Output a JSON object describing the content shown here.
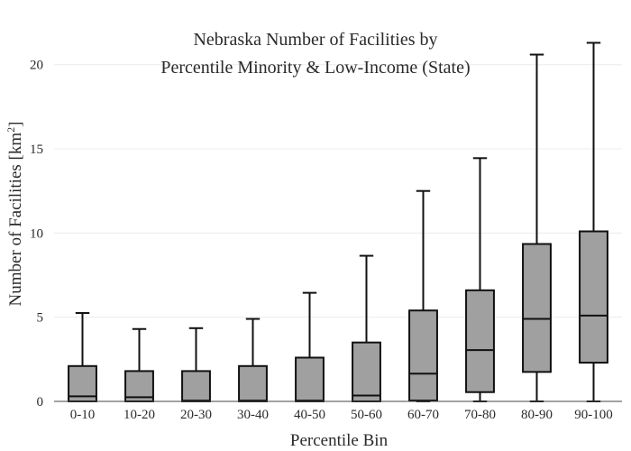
{
  "chart_data": {
    "type": "box",
    "title_line1": "Nebraska Number of Facilities by",
    "title_line2": "Percentile Minority & Low-Income (State)",
    "xlabel": "Percentile Bin",
    "ylabel_main": "Number of Facilities  [km",
    "ylabel_sup": "2",
    "ylabel_end": "]",
    "ylim": [
      0,
      21.7
    ],
    "yticks": [
      0,
      5,
      10,
      15,
      20
    ],
    "grid": true,
    "box_color": "#a0a0a0",
    "line_color": "#111111",
    "categories": [
      "0-10",
      "10-20",
      "20-30",
      "30-40",
      "40-50",
      "50-60",
      "60-70",
      "70-80",
      "80-90",
      "90-100"
    ],
    "boxes": [
      {
        "category": "0-10",
        "min": 0,
        "q1": 0,
        "median": 0.3,
        "q3": 2.1,
        "max": 5.25
      },
      {
        "category": "10-20",
        "min": 0,
        "q1": 0,
        "median": 0.25,
        "q3": 1.8,
        "max": 4.3
      },
      {
        "category": "20-30",
        "min": 0,
        "q1": 0,
        "median": 0.05,
        "q3": 1.8,
        "max": 4.35
      },
      {
        "category": "30-40",
        "min": 0,
        "q1": 0,
        "median": 0.05,
        "q3": 2.1,
        "max": 4.9
      },
      {
        "category": "40-50",
        "min": 0,
        "q1": 0,
        "median": 0.05,
        "q3": 2.6,
        "max": 6.45
      },
      {
        "category": "50-60",
        "min": 0,
        "q1": 0,
        "median": 0.35,
        "q3": 3.5,
        "max": 8.65
      },
      {
        "category": "60-70",
        "min": 0,
        "q1": 0.05,
        "median": 1.65,
        "q3": 5.4,
        "max": 12.5
      },
      {
        "category": "70-80",
        "min": 0,
        "q1": 0.55,
        "median": 3.05,
        "q3": 6.6,
        "max": 14.45
      },
      {
        "category": "80-90",
        "min": 0,
        "q1": 1.75,
        "median": 4.9,
        "q3": 9.35,
        "max": 20.6
      },
      {
        "category": "90-100",
        "min": 0,
        "q1": 2.3,
        "median": 5.1,
        "q3": 10.1,
        "max": 21.3
      }
    ]
  }
}
